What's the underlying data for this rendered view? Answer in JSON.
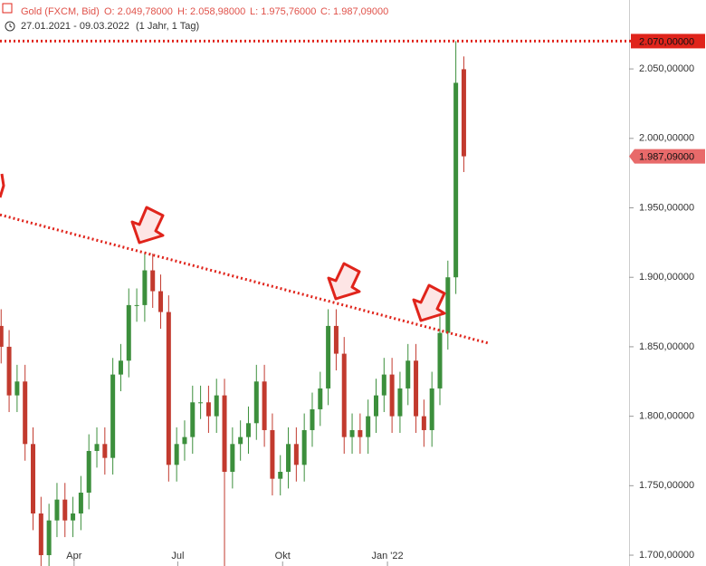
{
  "chart_data": {
    "type": "candlestick",
    "title": "Gold (FXCM, Bid)",
    "ohlc_labels": [
      "O: 2.049,78000",
      "H: 2.058,98000",
      "L: 1.975,76000",
      "C: 1.987,09000"
    ],
    "subtitle": "27.01.2021 - 09.03.2022",
    "period": "(1 Jahr, 1 Tag)",
    "x": [
      0,
      7,
      14,
      21,
      28,
      35,
      42,
      49,
      56,
      63,
      70,
      77,
      84,
      91,
      98,
      105,
      112,
      119,
      126,
      133,
      140,
      147,
      154,
      161,
      168,
      175,
      182,
      189,
      196,
      203,
      210,
      217,
      224,
      231,
      238,
      245,
      252,
      259,
      266,
      273,
      280,
      287,
      294,
      301,
      308,
      315,
      322,
      329,
      336,
      343,
      350,
      357,
      364,
      371,
      378,
      385,
      392,
      399,
      406
    ],
    "open": [
      1865,
      1850,
      1815,
      1825,
      1780,
      1730,
      1700,
      1725,
      1740,
      1725,
      1730,
      1745,
      1775,
      1780,
      1770,
      1830,
      1840,
      1880,
      1880,
      1905,
      1890,
      1875,
      1765,
      1780,
      1785,
      1810,
      1810,
      1800,
      1815,
      1760,
      1780,
      1785,
      1795,
      1825,
      1790,
      1755,
      1760,
      1780,
      1765,
      1790,
      1805,
      1820,
      1865,
      1845,
      1785,
      1790,
      1785,
      1800,
      1815,
      1830,
      1800,
      1820,
      1840,
      1800,
      1790,
      1820,
      1860,
      1900,
      2049.78
    ],
    "high": [
      1877,
      1862,
      1837,
      1837,
      1792,
      1742,
      1737,
      1752,
      1752,
      1742,
      1757,
      1787,
      1792,
      1792,
      1842,
      1852,
      1892,
      1892,
      1918,
      1917,
      1902,
      1887,
      1792,
      1797,
      1822,
      1822,
      1822,
      1827,
      1827,
      1792,
      1797,
      1807,
      1837,
      1837,
      1802,
      1772,
      1792,
      1792,
      1802,
      1817,
      1832,
      1877,
      1877,
      1857,
      1802,
      1802,
      1812,
      1827,
      1842,
      1842,
      1832,
      1852,
      1852,
      1812,
      1832,
      1872,
      1912,
      2070,
      2058.98
    ],
    "low": [
      1838,
      1803,
      1803,
      1768,
      1718,
      1677,
      1688,
      1713,
      1713,
      1713,
      1718,
      1733,
      1763,
      1758,
      1758,
      1818,
      1828,
      1868,
      1868,
      1878,
      1863,
      1753,
      1753,
      1768,
      1773,
      1798,
      1788,
      1788,
      1690,
      1748,
      1768,
      1773,
      1783,
      1778,
      1743,
      1743,
      1748,
      1753,
      1753,
      1778,
      1793,
      1808,
      1833,
      1773,
      1773,
      1773,
      1773,
      1788,
      1803,
      1788,
      1788,
      1808,
      1788,
      1778,
      1778,
      1808,
      1848,
      1888,
      1975.76
    ],
    "close": [
      1850,
      1815,
      1825,
      1780,
      1730,
      1700,
      1725,
      1740,
      1725,
      1730,
      1745,
      1775,
      1780,
      1770,
      1830,
      1840,
      1880,
      1880,
      1905,
      1890,
      1875,
      1765,
      1780,
      1785,
      1810,
      1810,
      1800,
      1815,
      1760,
      1780,
      1785,
      1795,
      1825,
      1790,
      1755,
      1760,
      1780,
      1765,
      1790,
      1805,
      1820,
      1865,
      1845,
      1785,
      1790,
      1785,
      1800,
      1815,
      1830,
      1800,
      1820,
      1840,
      1800,
      1790,
      1820,
      1860,
      1900,
      2040,
      1987.09
    ],
    "up_color": "#3c8f3c",
    "down_color": "#c23a2e",
    "xlim": [
      -1,
      551
    ],
    "xticks": [
      {
        "value": 64,
        "label": "Apr"
      },
      {
        "value": 155,
        "label": "Jul"
      },
      {
        "value": 247,
        "label": "Okt"
      },
      {
        "value": 339,
        "label": "Jan '22"
      }
    ],
    "ylim": [
      1692.2,
      2099.6
    ],
    "yticks": [
      {
        "value": 1700,
        "label": "1.700,00000"
      },
      {
        "value": 1750,
        "label": "1.750,00000"
      },
      {
        "value": 1800,
        "label": "1.800,00000"
      },
      {
        "value": 1850,
        "label": "1.850,00000"
      },
      {
        "value": 1900,
        "label": "1.900,00000"
      },
      {
        "value": 1950,
        "label": "1.950,00000"
      },
      {
        "value": 2000,
        "label": "2.000,00000"
      },
      {
        "value": 2050,
        "label": "2.050,00000"
      }
    ],
    "reference_line": {
      "value": 2070,
      "label": "2.070,00000",
      "color": "#e0241b"
    },
    "last_price": {
      "value": 1987.09,
      "label": "1.987,09000",
      "color": "#e86a6a"
    },
    "trendline": {
      "x": [
        -1,
        428
      ],
      "y": [
        1945,
        1852.5
      ],
      "color": "#e0241b"
    }
  }
}
